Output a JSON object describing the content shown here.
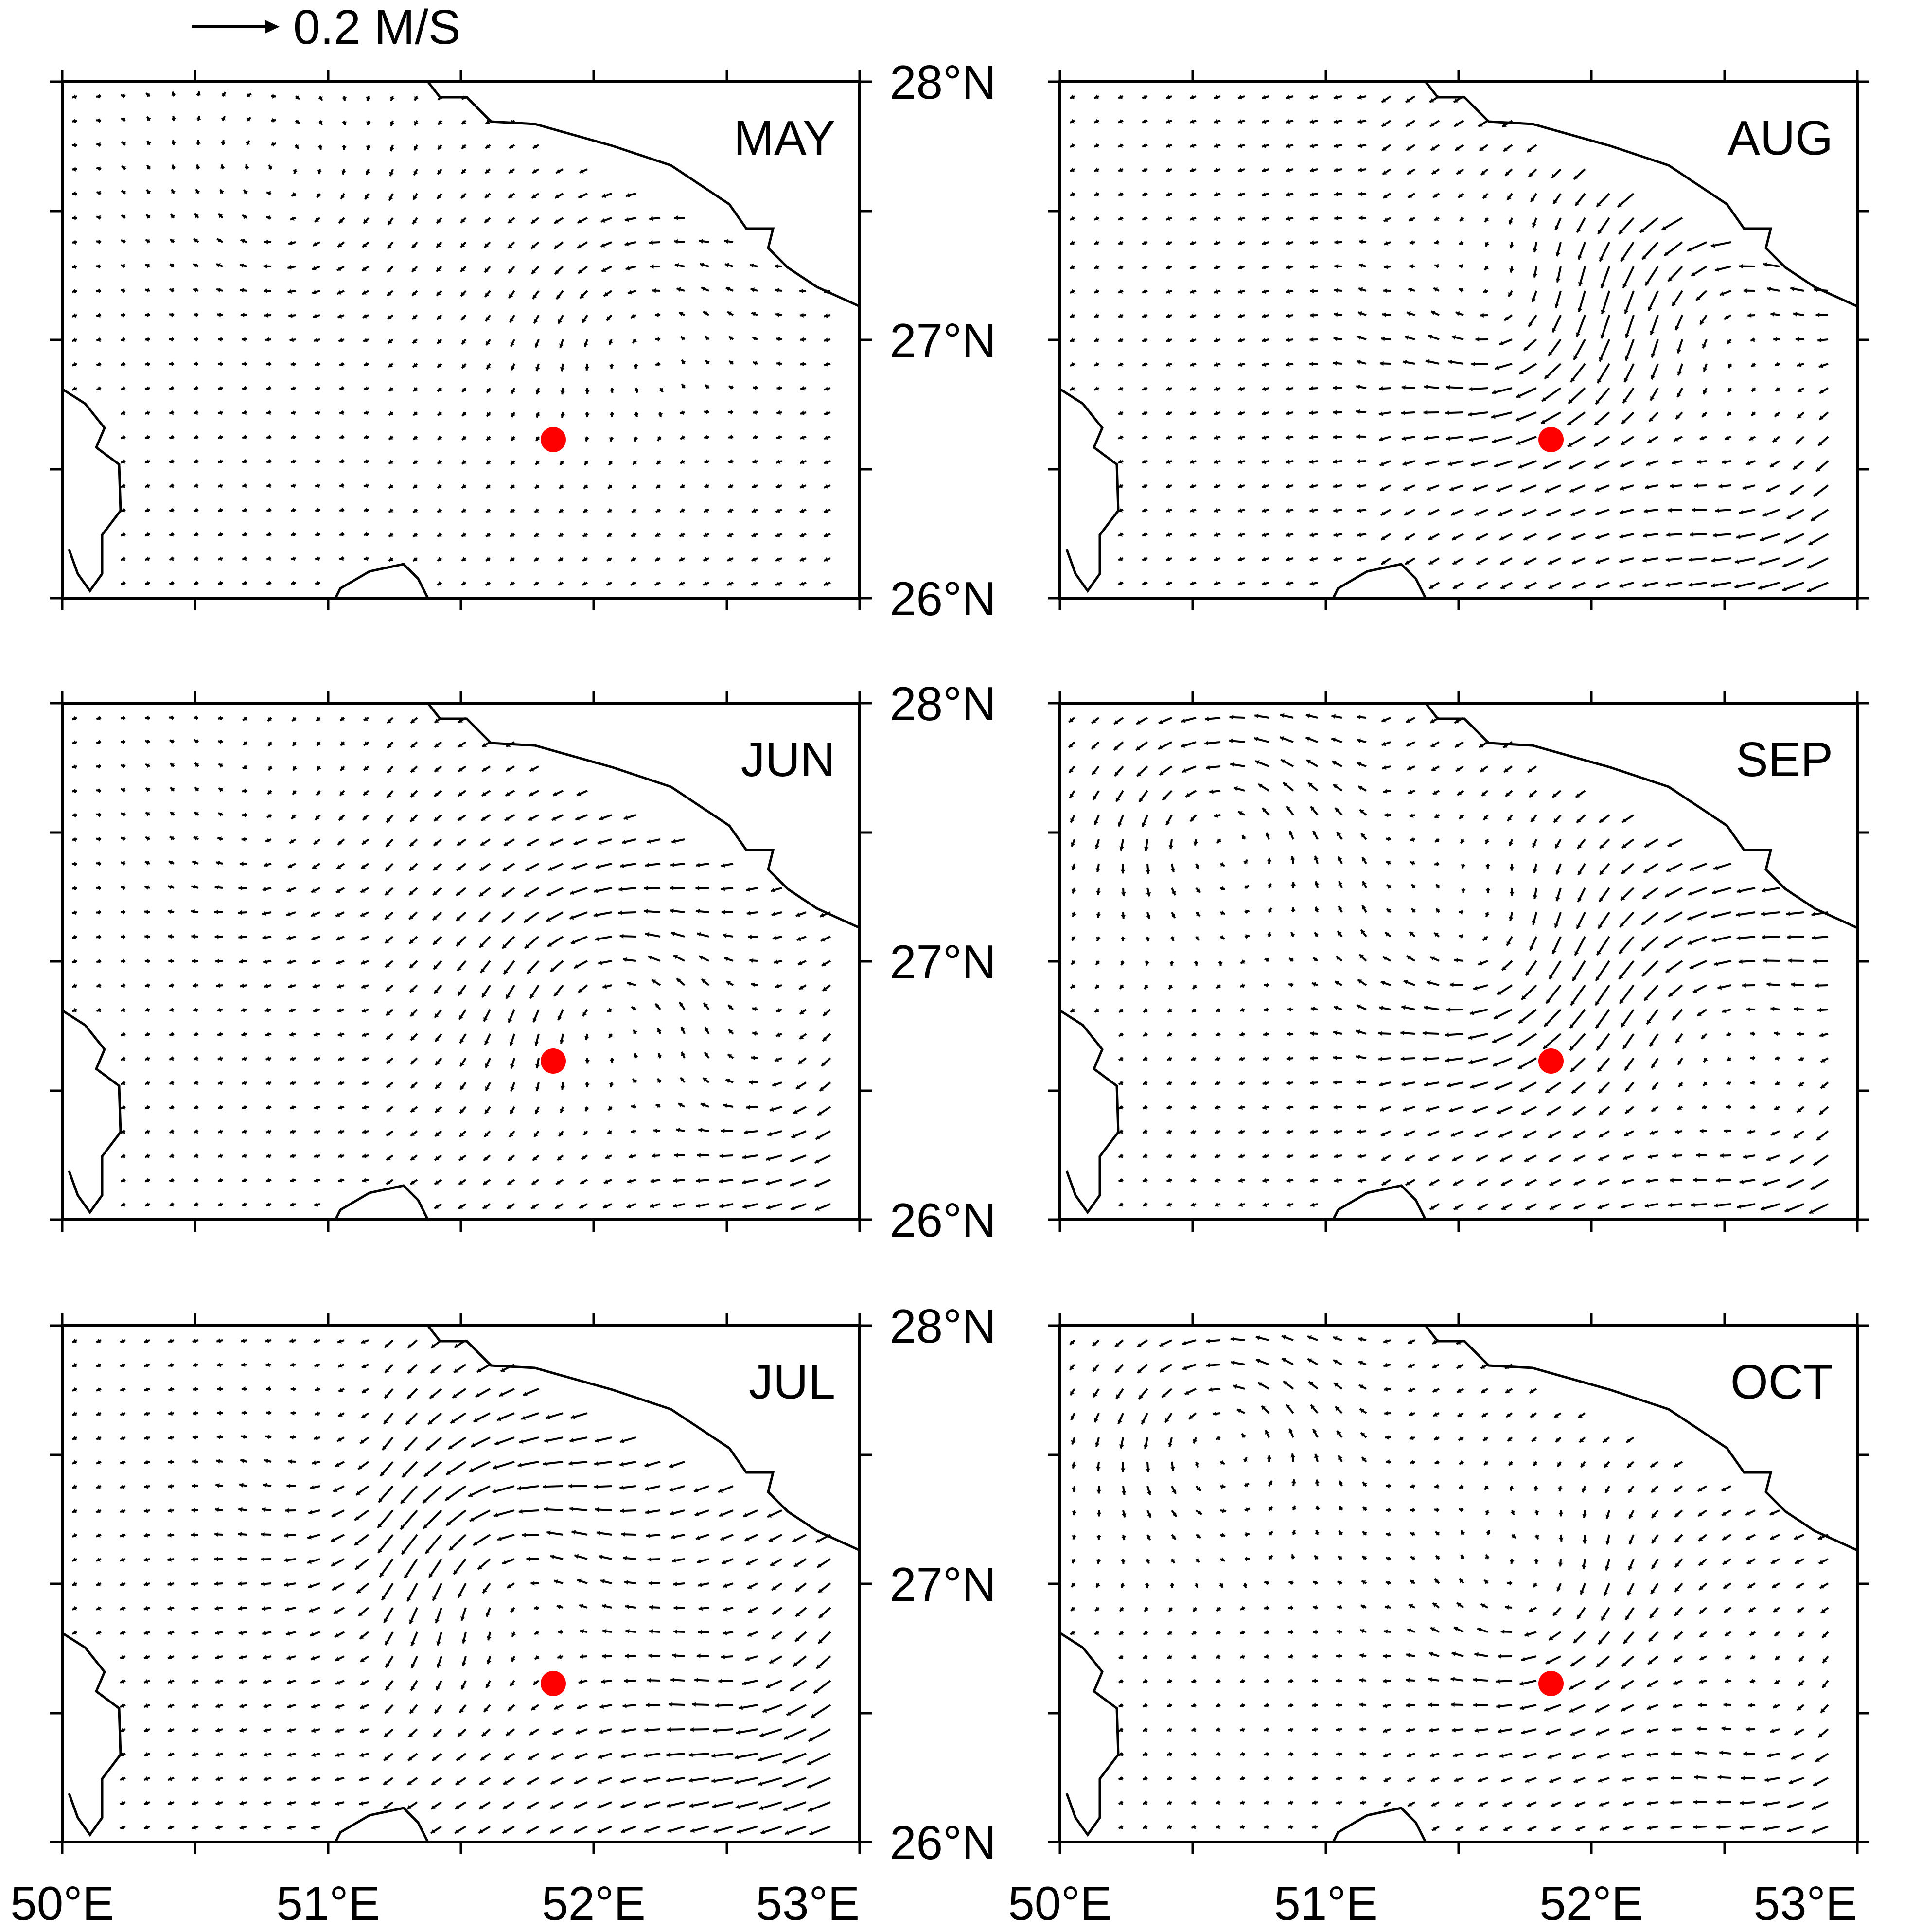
{
  "scale_label": "0.2 M/S",
  "scale_speed_ms": 0.2,
  "lon_ticks": [
    "50°E",
    "51°E",
    "52°E",
    "53°E"
  ],
  "lat_ticks": [
    "28°N",
    "27°N",
    "26°N"
  ],
  "extent": {
    "lon": [
      50,
      53
    ],
    "lat": [
      26,
      28
    ]
  },
  "colors": {
    "marker": "#ff0000",
    "vectors": "#000000",
    "coast": "#000000"
  },
  "marker_location": {
    "lon": 51.85,
    "lat": 26.62
  },
  "panels": [
    {
      "id": "may",
      "title": "MAY",
      "intensity": 0.45
    },
    {
      "id": "aug",
      "title": "AUG",
      "intensity": 1.1
    },
    {
      "id": "jun",
      "title": "JUN",
      "intensity": 0.8
    },
    {
      "id": "sep",
      "title": "SEP",
      "intensity": 1.0
    },
    {
      "id": "jul",
      "title": "JUL",
      "intensity": 1.2
    },
    {
      "id": "oct",
      "title": "OCT",
      "intensity": 0.75
    }
  ]
}
